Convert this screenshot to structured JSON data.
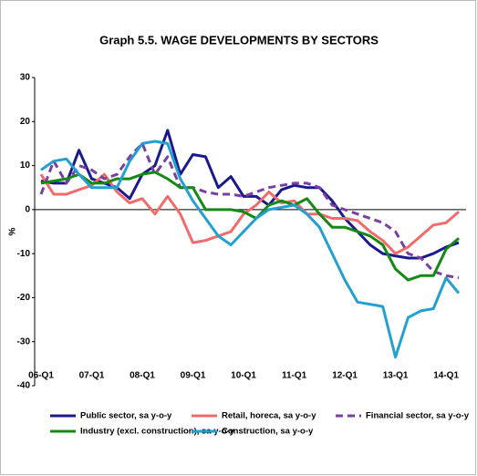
{
  "chart_data": {
    "type": "line",
    "title": "Graph 5.5. WAGE DEVELOPMENTS BY SECTORS",
    "y_label": "%",
    "categories": [
      "06-Q1",
      null,
      null,
      null,
      "07-Q1",
      null,
      null,
      null,
      "08-Q1",
      null,
      null,
      null,
      "09-Q1",
      null,
      null,
      null,
      "10-Q1",
      null,
      null,
      null,
      "11-Q1",
      null,
      null,
      null,
      "12-Q1",
      null,
      null,
      null,
      "13-Q1",
      null,
      null,
      null,
      "14-Q1",
      null
    ],
    "ylim": [
      -40,
      30
    ],
    "yticks": [
      -40,
      -30,
      -20,
      -10,
      0,
      10,
      20,
      30
    ],
    "series": [
      {
        "name": "Public sector, sa y-o-y",
        "color": "#1a1a8c",
        "dash": false,
        "values": [
          6.5,
          6,
          6,
          13.5,
          7,
          6,
          5,
          2.5,
          8,
          10,
          18,
          8,
          12.5,
          12,
          5,
          7.5,
          3,
          3,
          1,
          4.5,
          5.5,
          5,
          5,
          2,
          -2,
          -5,
          -8,
          -10,
          -10.5,
          -11,
          -11,
          -10,
          -8.5,
          -7.5
        ]
      },
      {
        "name": "Retail, horeca, sa y-o-y",
        "color": "#f26b6b",
        "dash": false,
        "values": [
          8,
          3.5,
          3.5,
          4.5,
          5.5,
          8,
          4,
          1.5,
          2.5,
          -1,
          3,
          -1,
          -7.5,
          -7,
          -6,
          -5,
          -1,
          1,
          4,
          1.5,
          2,
          -1,
          -1,
          -2,
          -2,
          -2.5,
          -5,
          -7,
          -10,
          -8.5,
          -6,
          -3.5,
          -3,
          -0.5
        ]
      },
      {
        "name": "Financial sector, sa y-o-y",
        "color": "#7a3fa0",
        "dash": true,
        "values": [
          3.5,
          11,
          6,
          10,
          9,
          7,
          8,
          12,
          15,
          8,
          12,
          5,
          5,
          4,
          3.5,
          3.5,
          3,
          4,
          5,
          5.5,
          6,
          6,
          5,
          1,
          0,
          -1,
          -2,
          -3,
          -5,
          -10,
          -11,
          -14,
          -15,
          -15.5
        ]
      },
      {
        "name": "Industry (excl. construction), sa y-o-y",
        "color": "#138a13",
        "dash": false,
        "values": [
          6,
          6.5,
          7,
          8,
          6,
          6,
          7,
          7,
          8,
          8.5,
          7,
          5,
          5,
          0,
          0,
          0,
          -0.5,
          -2,
          1,
          2,
          1,
          2.5,
          -1,
          -4,
          -4,
          -5,
          -6,
          -8,
          -13.5,
          -16,
          -15,
          -15,
          -9,
          -6.5
        ]
      },
      {
        "name": "Construction, sa y-o-y",
        "color": "#22a0d0",
        "dash": false,
        "values": [
          9,
          11,
          11.5,
          8,
          5,
          5,
          5,
          11,
          15,
          15.5,
          15,
          7,
          2,
          -2,
          -6,
          -8,
          -5,
          -2,
          0,
          0.5,
          1,
          -1,
          -4,
          -10,
          -16,
          -21,
          -21.5,
          -22,
          -33.5,
          -24.5,
          -23,
          -22.5,
          -15.5,
          -19
        ]
      }
    ]
  }
}
